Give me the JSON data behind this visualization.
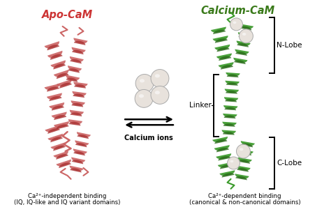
{
  "title_left": "Apo-CaM",
  "title_right": "Calcium-CaM",
  "title_left_color": "#cc3333",
  "title_right_color": "#3a7a1a",
  "arrow_label": "Calcium ions",
  "label_linker": "Linker",
  "label_nlobe": "N-Lobe",
  "label_clobe": "C-Lobe",
  "caption_left_line1": "Ca²⁺-independent binding",
  "caption_left_line2": "(IQ, IQ-like and IQ variant domains)",
  "caption_right_line1": "Ca²⁺-dependent binding",
  "caption_right_line2": "(canonical & non-canonical domains)",
  "bg_color": "#ffffff",
  "red_helix": "#cc6666",
  "red_helix_dark": "#aa3333",
  "green_helix": "#3a9a2a",
  "green_helix_dark": "#2a6a1a",
  "sphere_fill": "#e8e2dc",
  "sphere_edge": "#aaaaaa"
}
